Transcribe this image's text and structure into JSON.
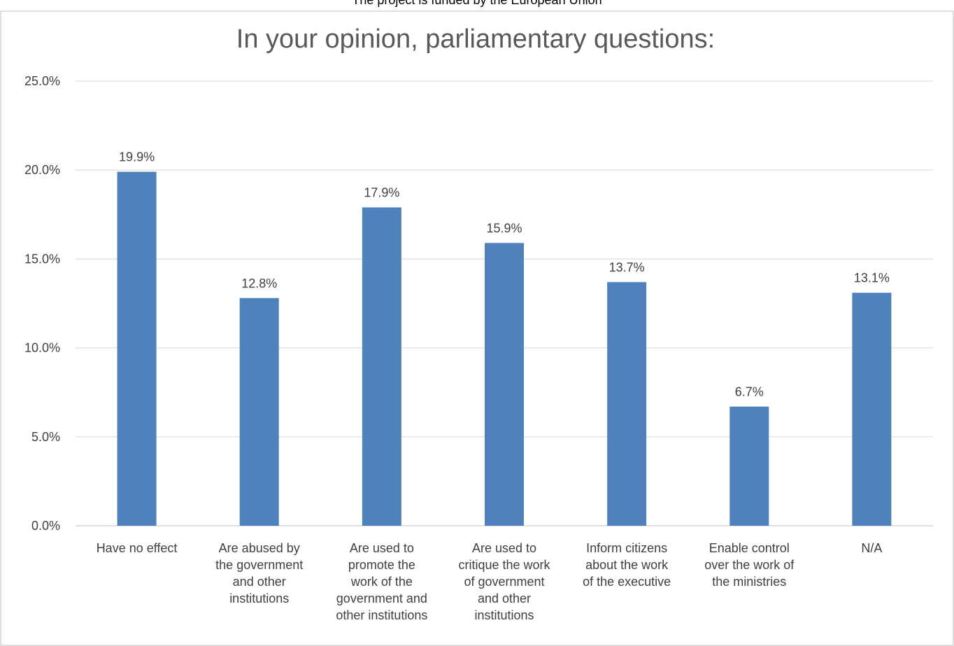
{
  "page_header": "The project is funded by the European Union",
  "chart_data": {
    "type": "bar",
    "title": "In your opinion, parliamentary questions:",
    "xlabel": "",
    "ylabel": "",
    "categories": [
      [
        "Have no effect"
      ],
      [
        "Are abused by",
        "the government",
        "and other",
        "institutions"
      ],
      [
        "Are used to",
        "promote the",
        "work of the",
        "government and",
        "other institutions"
      ],
      [
        "Are used to",
        "critique the work",
        "of government",
        "and other",
        "institutions"
      ],
      [
        "Inform citizens",
        "about the work",
        "of the executive"
      ],
      [
        "Enable control",
        "over the work of",
        "the ministries"
      ],
      [
        "N/A"
      ]
    ],
    "values": [
      19.9,
      12.8,
      17.9,
      15.9,
      13.7,
      6.7,
      13.1
    ],
    "data_labels": [
      "19.9%",
      "12.8%",
      "17.9%",
      "15.9%",
      "13.7%",
      "6.7%",
      "13.1%"
    ],
    "yticks": [
      0,
      5,
      10,
      15,
      20,
      25
    ],
    "ytick_labels": [
      "0.0%",
      "5.0%",
      "10.0%",
      "15.0%",
      "20.0%",
      "25.0%"
    ],
    "ylim": [
      0,
      25
    ],
    "grid": true,
    "legend": "none",
    "colors": {
      "bar": "#4f81bd",
      "grid": "#d9d9d9",
      "frame": "#bfbfbf",
      "text": "#404040",
      "title": "#595959"
    }
  }
}
